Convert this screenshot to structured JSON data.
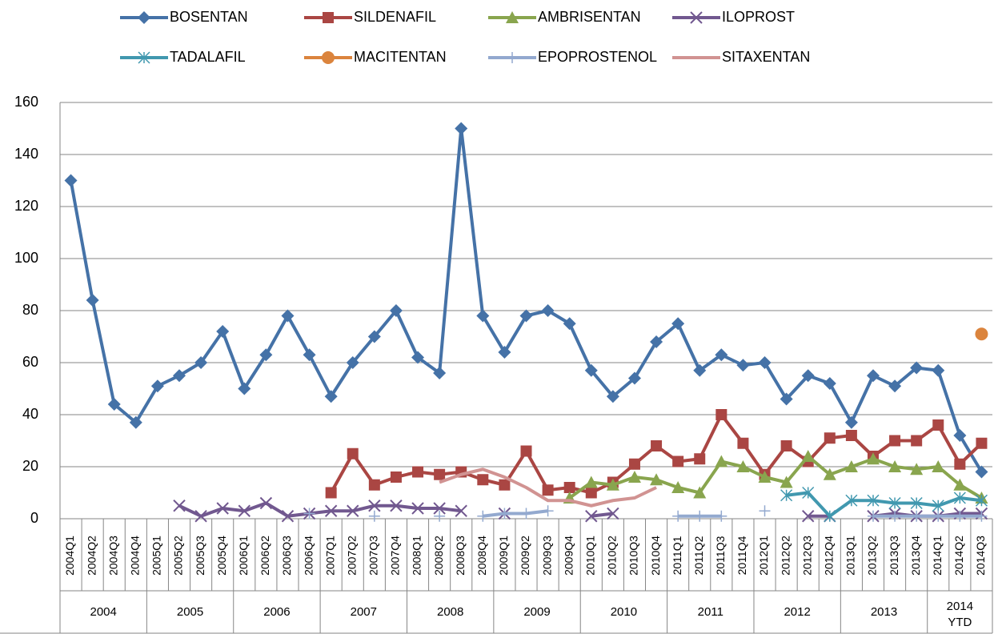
{
  "chart_data": {
    "type": "line",
    "categories": [
      "2004Q1",
      "2004Q2",
      "2004Q3",
      "2004Q4",
      "2005Q1",
      "2005Q2",
      "2005Q3",
      "2005Q4",
      "2006Q1",
      "2006Q2",
      "2006Q3",
      "2006Q4",
      "2007Q1",
      "2007Q2",
      "2007Q3",
      "2007Q4",
      "2008Q1",
      "2008Q2",
      "2008Q3",
      "2008Q4",
      "2009Q1",
      "2009Q2",
      "2009Q3",
      "2009Q4",
      "2010Q1",
      "2010Q2",
      "2010Q3",
      "2010Q4",
      "2011Q1",
      "2011Q2",
      "2011Q3",
      "2011Q4",
      "2012Q1",
      "2012Q2",
      "2012Q3",
      "2012Q4",
      "2013Q1",
      "2013Q2",
      "2013Q3",
      "2013Q4",
      "2014Q1",
      "2014Q2",
      "2014Q3"
    ],
    "groups": [
      "2004",
      "2005",
      "2006",
      "2007",
      "2008",
      "2009",
      "2010",
      "2011",
      "2012",
      "2013",
      "2014 YTD"
    ],
    "ylim": [
      0,
      160
    ],
    "yticks": [
      0,
      20,
      40,
      60,
      80,
      100,
      120,
      140,
      160
    ],
    "grid": true,
    "legend": "top",
    "series": [
      {
        "name": "BOSENTAN",
        "color": "#4572A7",
        "marker": "diamond",
        "line": true,
        "values": [
          130,
          84,
          44,
          37,
          51,
          55,
          60,
          72,
          50,
          63,
          78,
          63,
          47,
          60,
          70,
          80,
          62,
          56,
          150,
          78,
          64,
          78,
          80,
          75,
          57,
          47,
          54,
          68,
          75,
          57,
          63,
          59,
          60,
          46,
          55,
          52,
          37,
          55,
          51,
          58,
          57,
          32,
          18
        ]
      },
      {
        "name": "SILDENAFIL",
        "color": "#AA4643",
        "marker": "square",
        "line": true,
        "values": [
          null,
          null,
          null,
          null,
          null,
          null,
          null,
          null,
          null,
          null,
          null,
          null,
          10,
          25,
          13,
          16,
          18,
          17,
          18,
          15,
          13,
          26,
          11,
          12,
          10,
          14,
          21,
          28,
          22,
          23,
          40,
          29,
          17,
          28,
          22,
          31,
          32,
          24,
          30,
          30,
          36,
          21,
          29
        ]
      },
      {
        "name": "AMBRISENTAN",
        "color": "#89A54E",
        "marker": "triangle",
        "line": true,
        "values": [
          null,
          null,
          null,
          null,
          null,
          null,
          null,
          null,
          null,
          null,
          null,
          null,
          null,
          null,
          null,
          null,
          null,
          null,
          null,
          null,
          null,
          null,
          null,
          8,
          14,
          13,
          16,
          15,
          12,
          10,
          22,
          20,
          16,
          14,
          24,
          17,
          20,
          23,
          20,
          19,
          20,
          13,
          8
        ]
      },
      {
        "name": "ILOPROST",
        "color": "#71588F",
        "marker": "x",
        "line": true,
        "values": [
          null,
          null,
          null,
          null,
          null,
          5,
          1,
          4,
          3,
          6,
          1,
          2,
          3,
          3,
          5,
          5,
          4,
          4,
          3,
          null,
          2,
          null,
          null,
          null,
          1,
          2,
          null,
          null,
          null,
          null,
          null,
          null,
          null,
          null,
          1,
          1,
          null,
          1,
          2,
          1,
          1,
          2,
          2
        ]
      },
      {
        "name": "TADALAFIL",
        "color": "#4198AF",
        "marker": "star",
        "line": true,
        "values": [
          null,
          null,
          null,
          null,
          null,
          null,
          null,
          null,
          null,
          null,
          null,
          null,
          null,
          null,
          null,
          null,
          null,
          null,
          null,
          null,
          null,
          null,
          null,
          null,
          null,
          null,
          null,
          null,
          null,
          null,
          null,
          null,
          null,
          9,
          10,
          1,
          7,
          7,
          6,
          6,
          5,
          8,
          7
        ]
      },
      {
        "name": "MACITENTAN",
        "color": "#DB843D",
        "marker": "circle",
        "line": true,
        "values": [
          null,
          null,
          null,
          null,
          null,
          null,
          null,
          null,
          null,
          null,
          null,
          null,
          null,
          null,
          null,
          null,
          null,
          null,
          null,
          null,
          null,
          null,
          null,
          null,
          null,
          null,
          null,
          null,
          null,
          null,
          null,
          null,
          null,
          null,
          null,
          null,
          null,
          null,
          null,
          null,
          null,
          null,
          71
        ]
      },
      {
        "name": "EPOPROSTENOL",
        "color": "#93A9CF",
        "marker": "plus",
        "line": true,
        "values": [
          null,
          null,
          null,
          null,
          null,
          null,
          null,
          null,
          null,
          null,
          null,
          2,
          null,
          null,
          1,
          null,
          null,
          1,
          null,
          1,
          2,
          2,
          3,
          null,
          null,
          null,
          null,
          null,
          1,
          1,
          1,
          null,
          3,
          null,
          null,
          null,
          null,
          1,
          1,
          1,
          1,
          1,
          1
        ]
      },
      {
        "name": "SITAXENTAN",
        "color": "#D19392",
        "marker": "none",
        "line": true,
        "values": [
          null,
          null,
          null,
          null,
          null,
          null,
          null,
          null,
          null,
          null,
          null,
          null,
          null,
          null,
          null,
          null,
          null,
          14,
          17,
          19,
          16,
          12,
          7,
          7,
          5,
          7,
          8,
          12,
          null,
          null,
          null,
          null,
          null,
          null,
          null,
          null,
          null,
          null,
          null,
          null,
          null,
          null,
          null
        ]
      }
    ]
  }
}
